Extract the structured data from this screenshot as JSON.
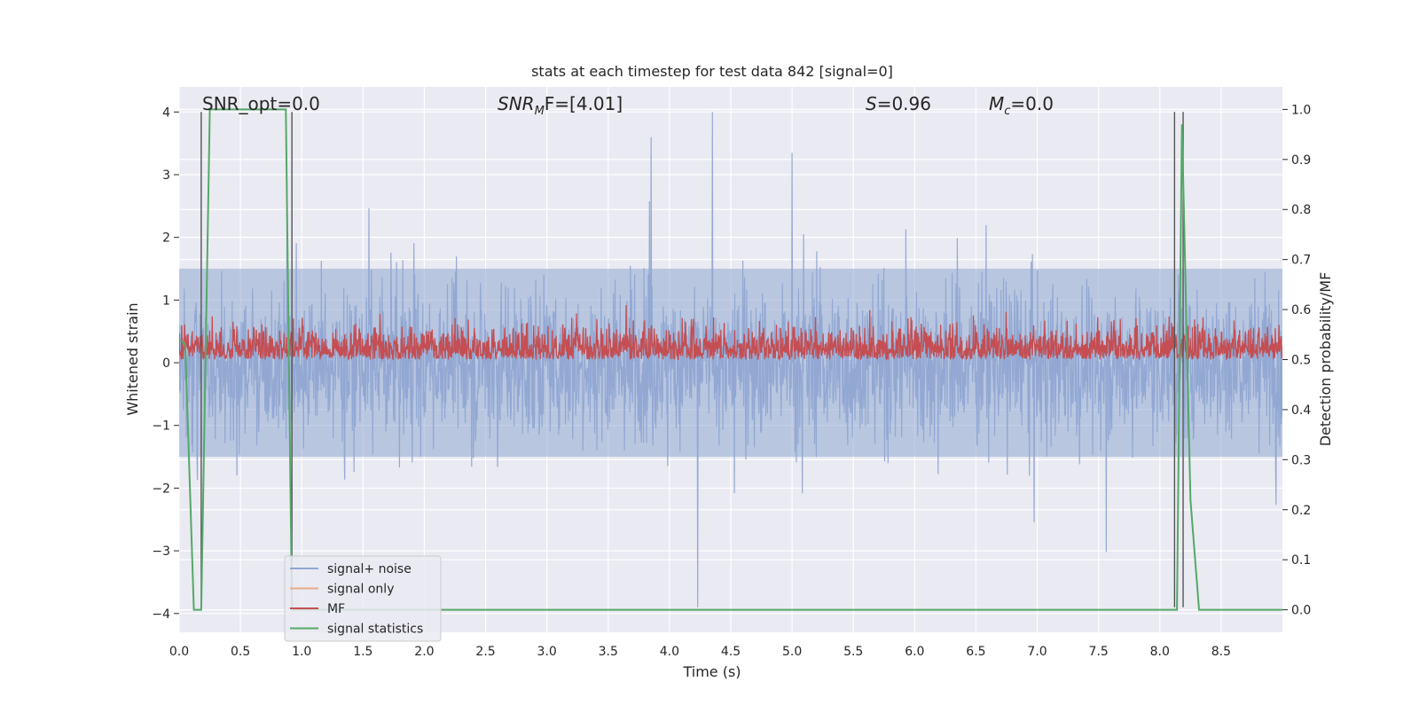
{
  "chart_data": {
    "type": "line",
    "title": "stats at each timestep for test data 842 [signal=0]",
    "xlabel": "Time (s)",
    "ylabel_left": "Whitened strain",
    "ylabel_right": "Detection probability/MF",
    "xlim": [
      0.0,
      9.0
    ],
    "ylim_left": [
      -4.3,
      4.4
    ],
    "ylim_right": [
      -0.045,
      1.045
    ],
    "x_ticks": [
      "0.0",
      "0.5",
      "1.0",
      "1.5",
      "2.0",
      "2.5",
      "3.0",
      "3.5",
      "4.0",
      "4.5",
      "5.0",
      "5.5",
      "6.0",
      "6.5",
      "7.0",
      "7.5",
      "8.0",
      "8.5"
    ],
    "y_ticks_left": [
      "4",
      "3",
      "2",
      "1",
      "0",
      "−1",
      "−2",
      "−3",
      "−4"
    ],
    "y_ticks_right": [
      "1.0",
      "0.9",
      "0.8",
      "0.7",
      "0.6",
      "0.5",
      "0.4",
      "0.3",
      "0.2",
      "0.1",
      "0.0"
    ],
    "grid": true,
    "legend_position": "lower-left",
    "annotations": {
      "snr_opt": "SNR_opt=0.0",
      "snr_mf_symbol": "SNR",
      "snr_mf_sub": "M",
      "snr_mf_rest": "F=[4.01]",
      "s_symbol": "S",
      "s_rest": "=0.96",
      "mc_symbol": "M",
      "mc_sub": "c",
      "mc_rest": "=0.0"
    },
    "series": [
      {
        "name": "signal+ noise",
        "color": "#8fa7d2",
        "axis": "left",
        "envelope": [
          -1.5,
          1.5
        ],
        "peak_max": 4.0,
        "peak_min": -3.9
      },
      {
        "name": "signal only",
        "color": "#e8a989",
        "axis": "left",
        "values": []
      },
      {
        "name": "MF",
        "color": "#c44e52",
        "axis": "right",
        "baseline": 0.5,
        "range": [
          0.5,
          0.62
        ]
      },
      {
        "name": "signal statistics",
        "color": "#55a868",
        "axis": "right",
        "points": [
          [
            0.0,
            0.54
          ],
          [
            0.05,
            0.53
          ],
          [
            0.12,
            0.0
          ],
          [
            0.18,
            0.0
          ],
          [
            0.25,
            1.0
          ],
          [
            0.87,
            1.0
          ],
          [
            0.92,
            0.0
          ],
          [
            8.1,
            0.0
          ],
          [
            8.14,
            0.0
          ],
          [
            8.18,
            0.97
          ],
          [
            8.25,
            0.22
          ],
          [
            8.32,
            0.0
          ],
          [
            9.0,
            0.0
          ]
        ]
      }
    ],
    "vertical_lines_x": [
      0.18,
      0.92,
      8.12,
      8.19
    ]
  }
}
